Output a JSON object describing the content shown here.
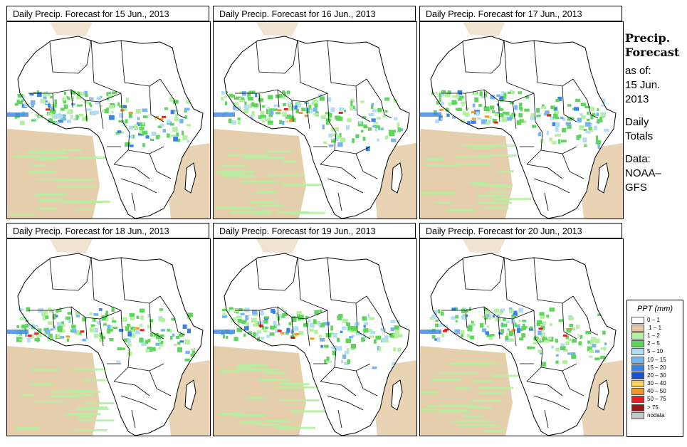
{
  "panels": [
    {
      "title": "Daily Precip. Forecast for  15 Jun., 2013"
    },
    {
      "title": "Daily Precip. Forecast for  16 Jun., 2013"
    },
    {
      "title": "Daily Precip. Forecast for  17 Jun., 2013"
    },
    {
      "title": "Daily Precip. Forecast for  18 Jun., 2013"
    },
    {
      "title": "Daily Precip. Forecast for  19 Jun., 2013"
    },
    {
      "title": "Daily Precip. Forecast for  20 Jun., 2013"
    }
  ],
  "info": {
    "heading_line1": "Precip.",
    "heading_line2": "Forecast",
    "asof_label": "as of:",
    "asof_date1": "15 Jun.",
    "asof_date2": "2013",
    "totals1": "Daily",
    "totals2": "Totals",
    "data1": "Data:",
    "data2": "NOAA–",
    "data3": "GFS"
  },
  "legend": {
    "title": "PPT (mm)",
    "items": [
      {
        "label": "0 – 1",
        "color": "#ffffff"
      },
      {
        "label": ".1 – 1",
        "color": "#e2c9a3"
      },
      {
        "label": "1 – 2",
        "color": "#b4f0a0"
      },
      {
        "label": "2 – 5",
        "color": "#5ed65e"
      },
      {
        "label": "5 – 10",
        "color": "#b4dcf5"
      },
      {
        "label": "10 – 15",
        "color": "#78b4f0"
      },
      {
        "label": "15 – 20",
        "color": "#3c82e6"
      },
      {
        "label": "20 – 30",
        "color": "#1e50c8"
      },
      {
        "label": "30 – 40",
        "color": "#f5d25a"
      },
      {
        "label": "40 – 50",
        "color": "#f59628"
      },
      {
        "label": "50 – 75",
        "color": "#e61e1e"
      },
      {
        "label": "> 75",
        "color": "#a01414"
      },
      {
        "label": "nodata",
        "color": "#c8c8c8"
      }
    ]
  }
}
